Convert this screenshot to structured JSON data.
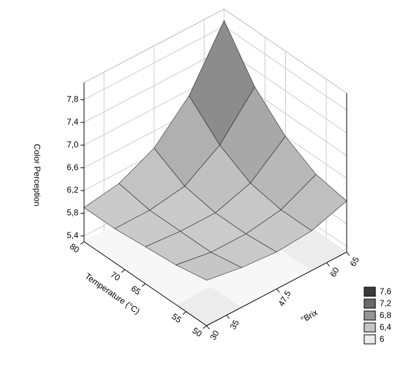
{
  "chart_data": {
    "type": "surface3d",
    "xlabel": "Temperature (°C)",
    "ylabel": "°Brix",
    "zlabel": "Color Perception",
    "x": [
      50,
      57.5,
      65,
      72.5,
      80
    ],
    "y": [
      30,
      38.75,
      47.5,
      56.25,
      65
    ],
    "z": [
      [
        6.1,
        6.0,
        5.95,
        6.0,
        6.2
      ],
      [
        6.0,
        5.9,
        5.9,
        6.0,
        6.3
      ],
      [
        5.95,
        5.9,
        5.9,
        6.1,
        6.6
      ],
      [
        5.9,
        5.9,
        6.0,
        6.4,
        7.1
      ],
      [
        5.9,
        6.0,
        6.3,
        6.9,
        7.9
      ]
    ],
    "xlim": [
      50,
      80
    ],
    "ylim": [
      30,
      65
    ],
    "zlim": [
      5.3,
      8.1
    ],
    "xticks": [
      80,
      70,
      65,
      55,
      50
    ],
    "yticks": [
      30,
      35,
      {
        "value": 47.5,
        "label": "47,5"
      },
      60,
      65
    ],
    "zticks": [
      {
        "value": 5.4,
        "label": "5,4"
      },
      {
        "value": 5.8,
        "label": "5,8"
      },
      {
        "value": 6.2,
        "label": "6,2"
      },
      {
        "value": 6.6,
        "label": "6,6"
      },
      {
        "value": 7.0,
        "label": "7,0"
      },
      {
        "value": 7.4,
        "label": "7,4"
      },
      {
        "value": 7.8,
        "label": "7,8"
      }
    ],
    "legend": [
      {
        "value": 7.6,
        "label": "7,6",
        "color": "#3a3a3a"
      },
      {
        "value": 7.2,
        "label": "7,2",
        "color": "#6a6a6a"
      },
      {
        "value": 6.8,
        "label": "6,8",
        "color": "#959595"
      },
      {
        "value": 6.4,
        "label": "6,4",
        "color": "#c4c4c4"
      },
      {
        "value": 6,
        "label": "6",
        "color": "#ececec"
      }
    ],
    "grid": true
  }
}
